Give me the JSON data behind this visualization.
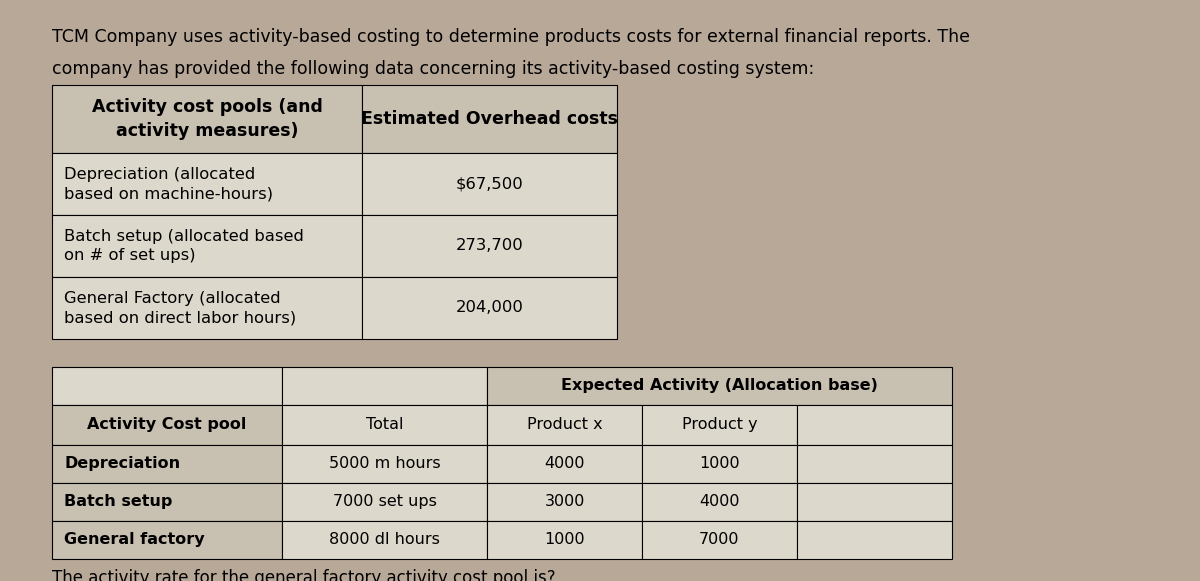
{
  "bg_color": "#b8a898",
  "table_cell_light": "#ddd8cc",
  "table_cell_white": "#e8e4dc",
  "table_header_bg": "#c8c0b0",
  "intro_line1": "TCM Company uses activity-based costing to determine products costs for external financial reports. The",
  "intro_line2": "company has provided the following data concerning its activity-based costing system:",
  "t1_col1_header_line1": "Activity cost pools (and",
  "t1_col1_header_line2": "activity measures)",
  "t1_col2_header": "Estimated Overhead costs",
  "t1_rows": [
    [
      "Depreciation (allocated\nbased on machine-hours)",
      "$67,500"
    ],
    [
      "Batch setup (allocated based\non # of set ups)",
      "273,700"
    ],
    [
      "General Factory (allocated\nbased on direct labor hours)",
      "204,000"
    ]
  ],
  "t2_merged_header": "Expected Activity (Allocation base)",
  "t2_col_headers": [
    "Activity Cost pool",
    "Total",
    "Product x",
    "Product y",
    ""
  ],
  "t2_rows": [
    [
      "Depreciation",
      "5000 m hours",
      "4000",
      "1000",
      ""
    ],
    [
      "Batch setup",
      "7000 set ups",
      "3000",
      "4000",
      ""
    ],
    [
      "General factory",
      "8000 dl hours",
      "1000",
      "7000",
      ""
    ]
  ],
  "footer": "The activity rate for the general factory activity cost pool is?",
  "fig_w": 12.0,
  "fig_h": 5.81
}
